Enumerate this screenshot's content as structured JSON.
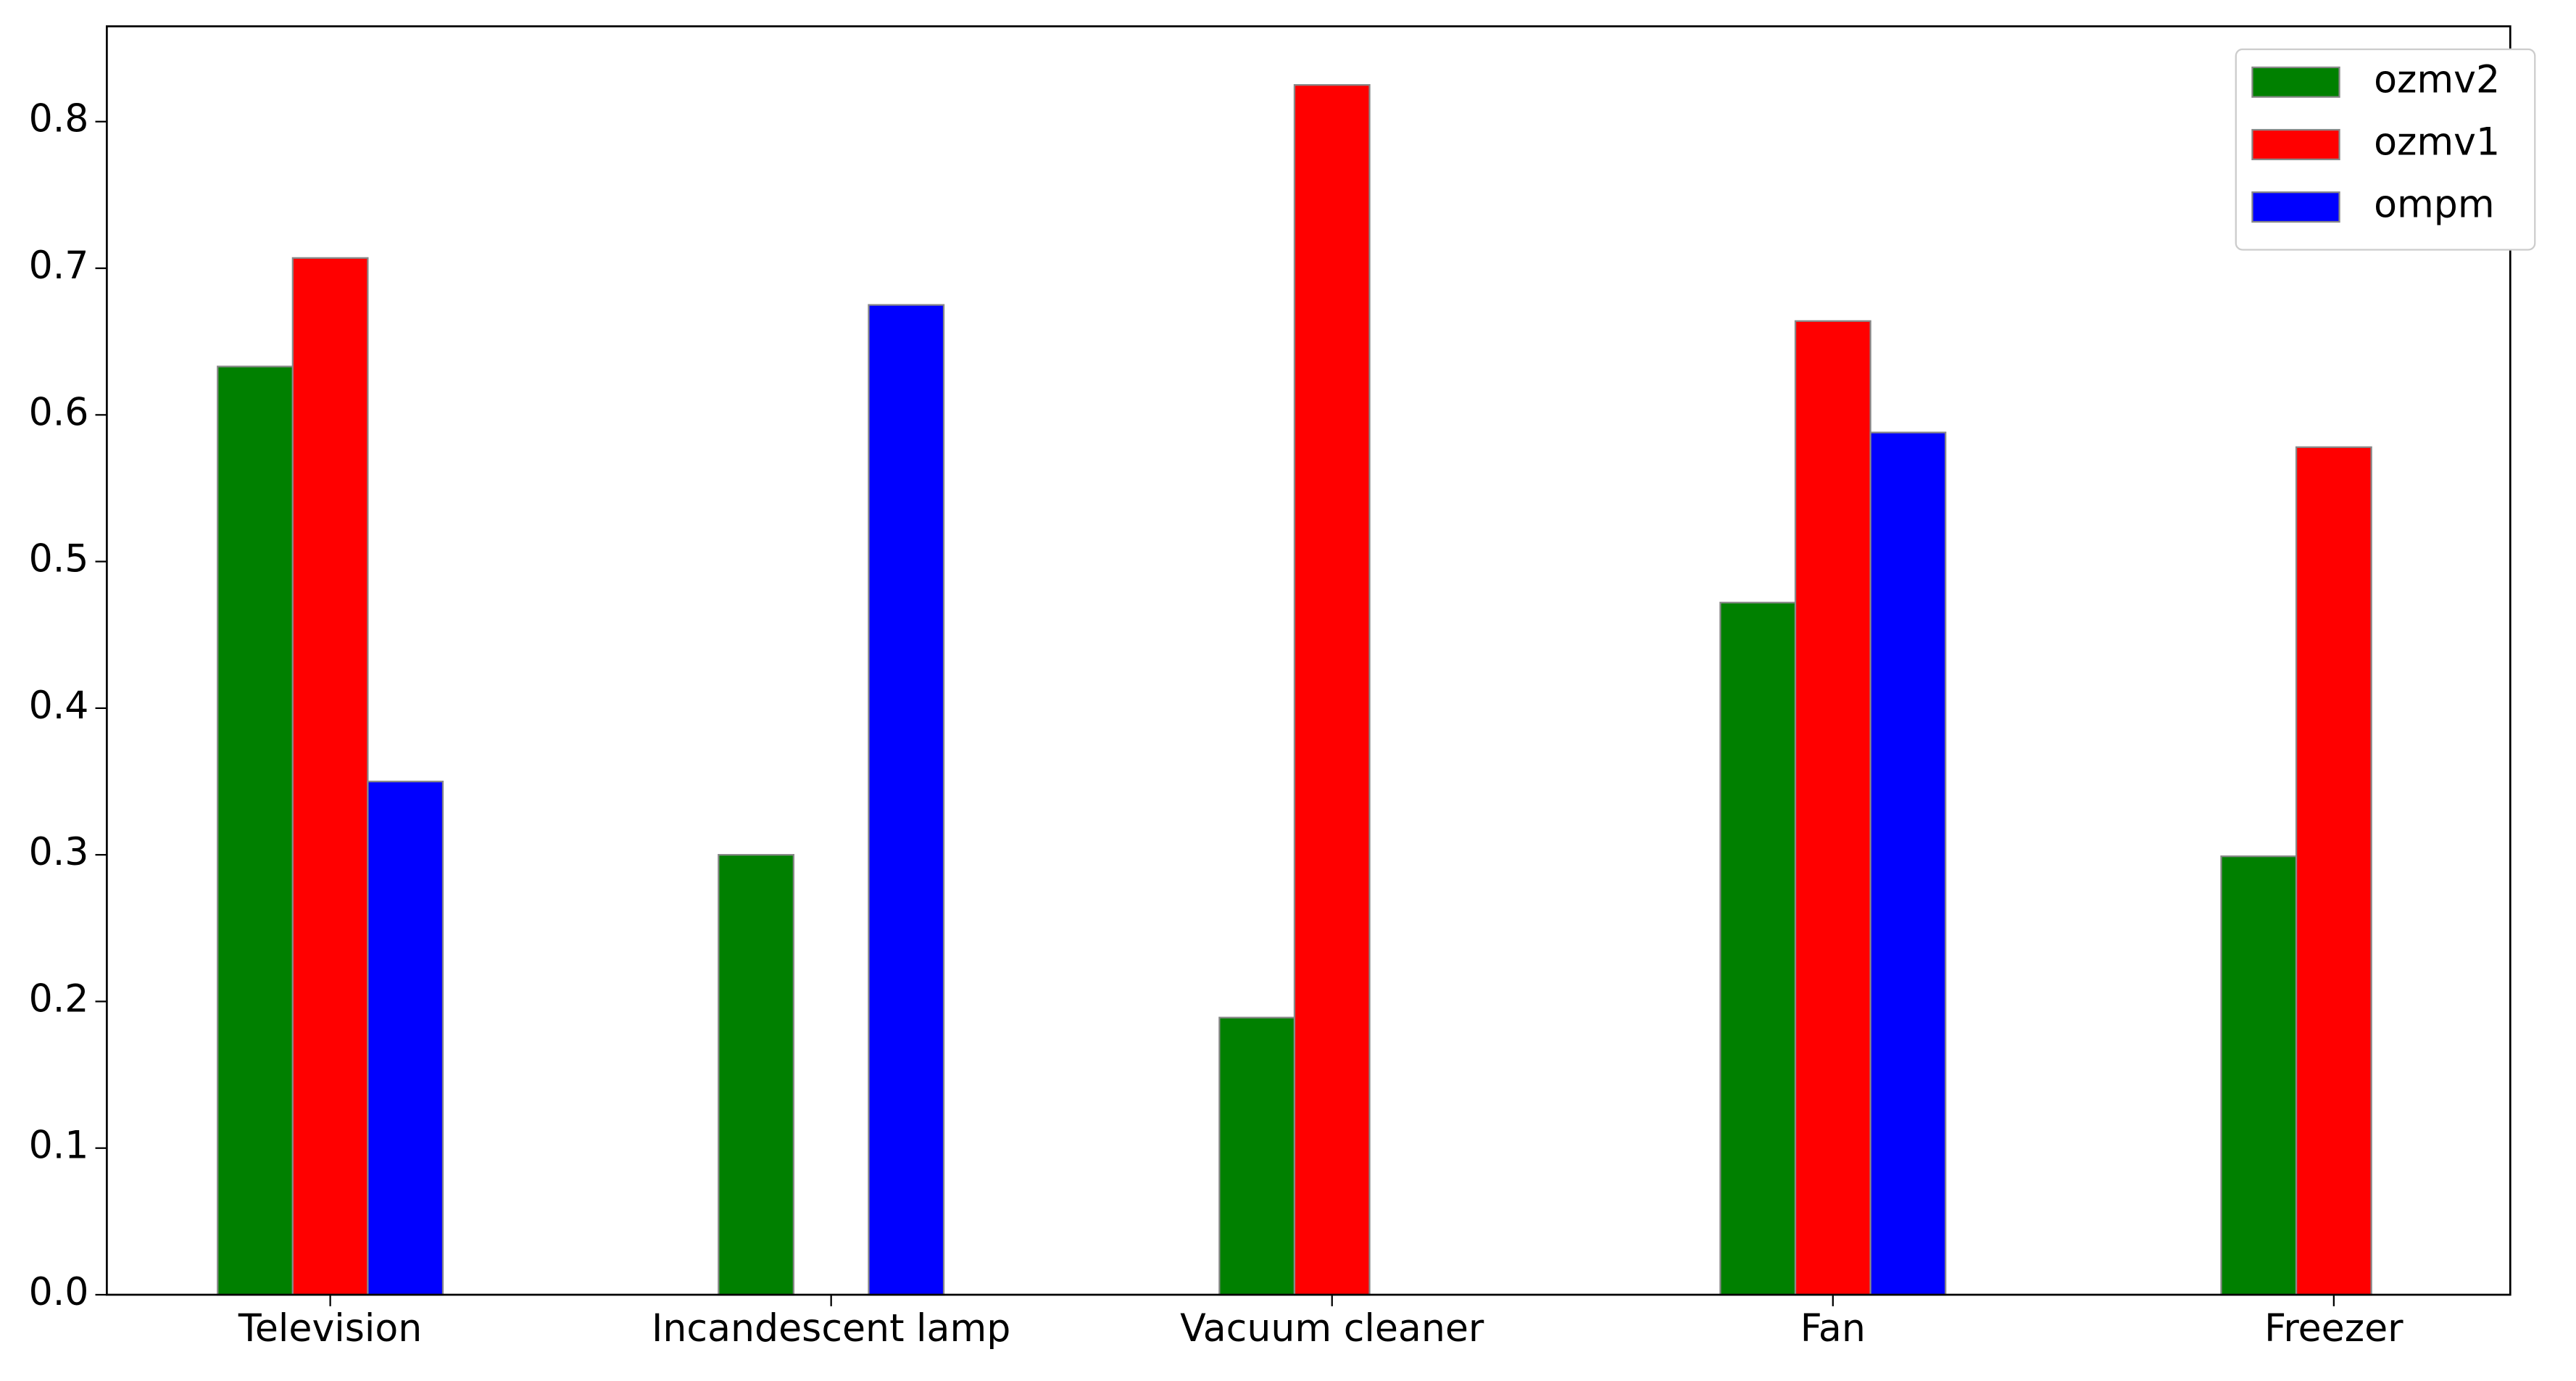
{
  "chart_data": {
    "type": "bar",
    "categories": [
      "Television",
      "Incandescent lamp",
      "Vacuum cleaner",
      "Fan",
      "Freezer"
    ],
    "series": [
      {
        "name": "ozmv2",
        "color": "#008000",
        "values": [
          0.633,
          0.3,
          0.189,
          0.472,
          0.299
        ]
      },
      {
        "name": "ozmv1",
        "color": "#ff0000",
        "values": [
          0.707,
          0,
          0.825,
          0.664,
          0.578
        ]
      },
      {
        "name": "ompm",
        "color": "#0000ff",
        "values": [
          0.35,
          0.675,
          0,
          0.588,
          0
        ]
      }
    ],
    "ylim": [
      0,
      0.865
    ],
    "yticks": [
      {
        "value": 0,
        "label": "0.0"
      },
      0.1,
      0.2,
      0.3,
      0.4,
      0.5,
      0.6,
      0.7,
      0.8
    ],
    "legend": "upper right",
    "grid": false
  }
}
